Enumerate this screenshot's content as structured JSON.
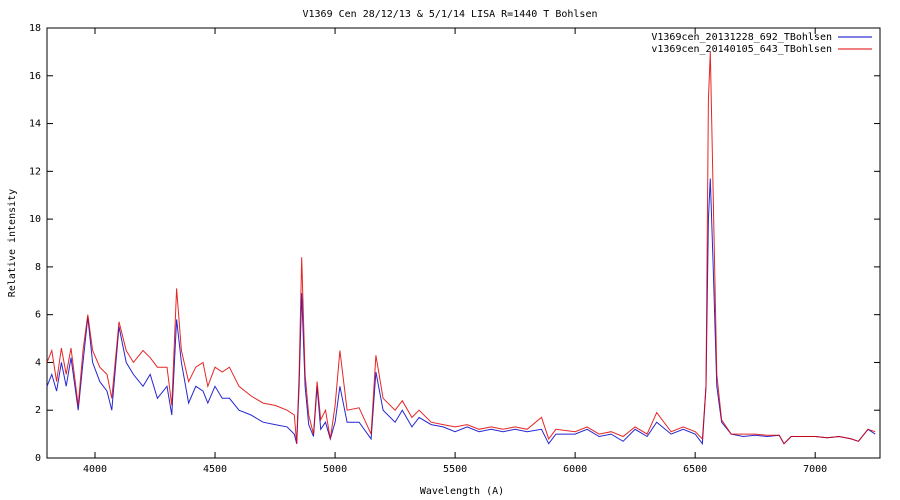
{
  "chart_data": {
    "type": "line",
    "title": "V1369 Cen 28/12/13 & 5/1/14 LISA R=1440 T Bohlsen",
    "x_label": "Wavelength (A)",
    "y_label": "Relative intensity",
    "xlim": [
      3800,
      7270
    ],
    "ylim": [
      0,
      18
    ],
    "xticks": [
      4000,
      4500,
      5000,
      5500,
      6000,
      6500,
      7000
    ],
    "yticks": [
      0,
      2,
      4,
      6,
      8,
      10,
      12,
      14,
      16,
      18
    ],
    "grid": false,
    "legend": "top-right",
    "x": [
      3800,
      3820,
      3840,
      3860,
      3880,
      3900,
      3930,
      3950,
      3970,
      3990,
      4020,
      4050,
      4070,
      4100,
      4130,
      4160,
      4200,
      4230,
      4260,
      4300,
      4320,
      4340,
      4360,
      4390,
      4420,
      4450,
      4470,
      4500,
      4530,
      4560,
      4600,
      4650,
      4700,
      4750,
      4800,
      4830,
      4840,
      4850,
      4861,
      4875,
      4890,
      4910,
      4925,
      4940,
      4960,
      4980,
      5000,
      5020,
      5050,
      5100,
      5150,
      5170,
      5200,
      5250,
      5280,
      5320,
      5350,
      5400,
      5450,
      5500,
      5550,
      5600,
      5650,
      5700,
      5750,
      5800,
      5860,
      5890,
      5920,
      6000,
      6050,
      6100,
      6150,
      6200,
      6250,
      6300,
      6340,
      6400,
      6450,
      6500,
      6530,
      6545,
      6555,
      6563,
      6575,
      6590,
      6610,
      6650,
      6700,
      6750,
      6800,
      6850,
      6870,
      6900,
      6950,
      7000,
      7050,
      7100,
      7150,
      7180,
      7220,
      7250
    ],
    "series": [
      {
        "name": "V1369cen_20131228_692_TBohlsen",
        "color": "#0000c8",
        "values": [
          3.0,
          3.5,
          2.8,
          4.0,
          3.0,
          4.2,
          2.0,
          4.0,
          5.9,
          4.0,
          3.2,
          2.8,
          2.0,
          5.5,
          4.0,
          3.5,
          3.0,
          3.5,
          2.5,
          3.0,
          1.8,
          5.8,
          4.0,
          2.3,
          3.0,
          2.8,
          2.3,
          3.0,
          2.5,
          2.5,
          2.0,
          1.8,
          1.5,
          1.4,
          1.3,
          1.0,
          0.6,
          3.0,
          6.9,
          3.0,
          1.4,
          0.9,
          3.0,
          1.2,
          1.5,
          0.8,
          1.5,
          3.0,
          1.5,
          1.5,
          0.8,
          3.6,
          2.0,
          1.5,
          2.0,
          1.3,
          1.7,
          1.4,
          1.3,
          1.1,
          1.3,
          1.1,
          1.2,
          1.1,
          1.2,
          1.1,
          1.2,
          0.6,
          1.0,
          1.0,
          1.2,
          0.9,
          1.0,
          0.7,
          1.2,
          0.9,
          1.5,
          1.0,
          1.2,
          1.0,
          0.6,
          3.0,
          10.0,
          11.7,
          8.0,
          3.0,
          1.5,
          1.0,
          0.9,
          0.95,
          0.9,
          0.95,
          0.6,
          0.9,
          0.9,
          0.9,
          0.85,
          0.9,
          0.8,
          0.7,
          1.2,
          1.0
        ]
      },
      {
        "name": "v1369cen_20140105_643_TBohlsen",
        "color": "#e00000",
        "values": [
          4.0,
          4.5,
          3.2,
          4.6,
          3.5,
          4.6,
          2.2,
          4.5,
          6.0,
          4.5,
          3.8,
          3.5,
          2.5,
          5.7,
          4.5,
          4.0,
          4.5,
          4.2,
          3.8,
          3.8,
          2.2,
          7.1,
          4.5,
          3.2,
          3.8,
          4.0,
          3.0,
          3.8,
          3.6,
          3.8,
          3.0,
          2.6,
          2.3,
          2.2,
          2.0,
          1.8,
          0.6,
          3.5,
          8.4,
          3.5,
          1.8,
          1.0,
          3.2,
          1.6,
          2.0,
          0.8,
          2.2,
          4.5,
          2.0,
          2.1,
          1.0,
          4.3,
          2.5,
          2.0,
          2.4,
          1.7,
          2.0,
          1.5,
          1.4,
          1.3,
          1.4,
          1.2,
          1.3,
          1.2,
          1.3,
          1.2,
          1.7,
          0.8,
          1.2,
          1.1,
          1.3,
          1.0,
          1.1,
          0.9,
          1.3,
          1.0,
          1.9,
          1.1,
          1.3,
          1.1,
          0.8,
          3.0,
          15.0,
          17.0,
          11.0,
          3.5,
          1.6,
          1.0,
          1.0,
          1.0,
          0.95,
          0.95,
          0.6,
          0.9,
          0.9,
          0.9,
          0.85,
          0.9,
          0.8,
          0.7,
          1.2,
          1.1
        ]
      }
    ]
  }
}
